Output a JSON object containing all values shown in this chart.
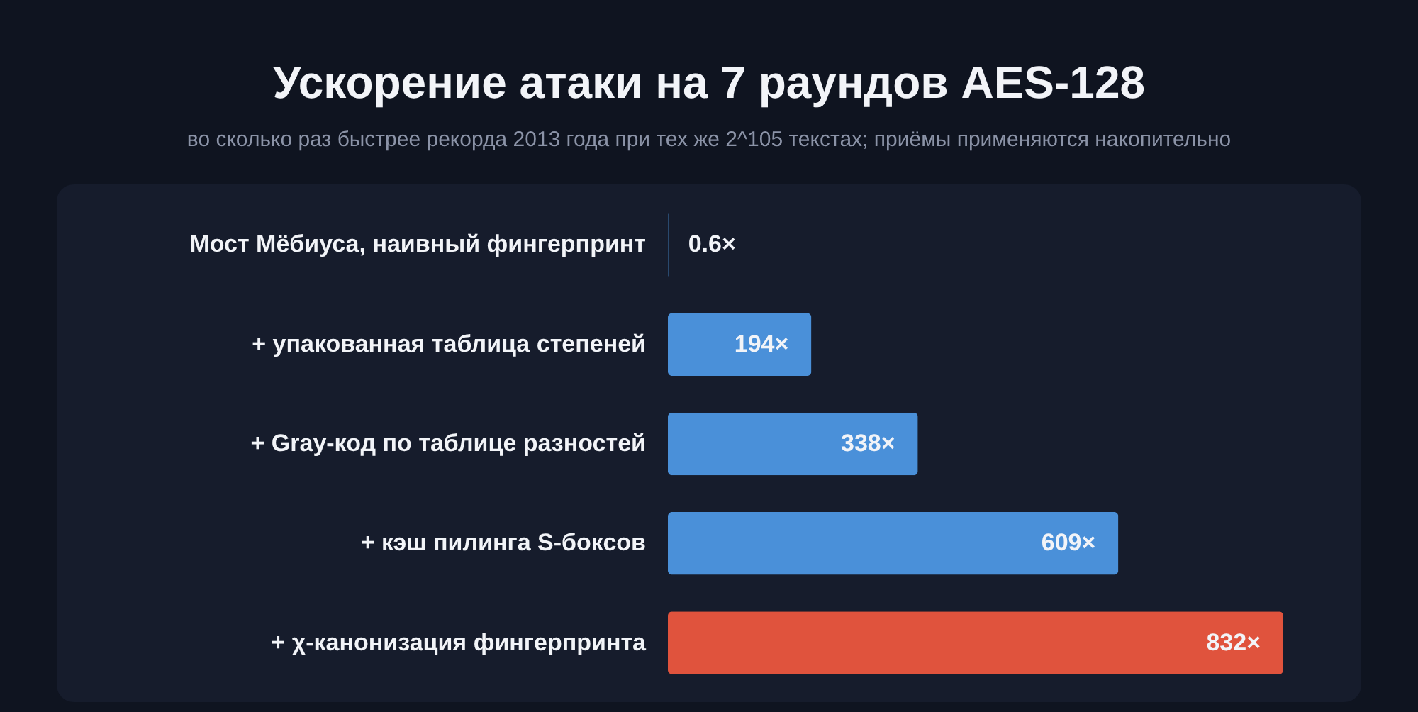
{
  "chart_data": {
    "type": "bar",
    "orientation": "horizontal",
    "title": "Ускорение атаки на 7 раундов AES-128",
    "subtitle": "во сколько раз быстрее рекорда 2013 года при тех же 2^105 текстах; приёмы применяются накопительно",
    "categories": [
      "Мост Мёбиуса, наивный фингерпринт",
      "+ упакованная таблица степеней",
      "+ Gray-код по таблице разностей",
      "+ кэш пилинга S-боксов",
      "+ χ-канонизация фингерпринта"
    ],
    "values": [
      0.6,
      194,
      338,
      609,
      832
    ],
    "value_labels": [
      "0.6×",
      "194×",
      "338×",
      "609×",
      "832×"
    ],
    "colors": [
      "#4a90d9",
      "#4a90d9",
      "#4a90d9",
      "#4a90d9",
      "#e0533d"
    ]
  }
}
